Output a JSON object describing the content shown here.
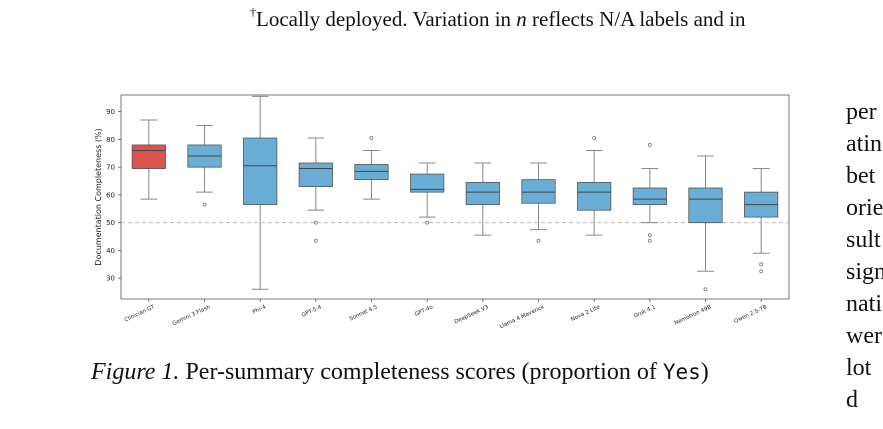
{
  "header_line": {
    "marker": "†",
    "text_before": "Locally deployed. Variation in ",
    "math_var": "n",
    "text_after": " reflects N/A labels and in"
  },
  "side_text_fragments": [
    "per",
    "atin",
    "bet",
    "orie",
    "sult",
    "sign",
    "nati",
    "wer",
    "lot",
    "d"
  ],
  "caption": {
    "label": "Figure 1.",
    "text": " Per-summary completeness scores (proportion of ",
    "code": "Yes",
    "close": ")"
  },
  "chart_data": {
    "type": "box",
    "ylabel": "Documentation Completeness (%)",
    "xlabel": "",
    "ylim": [
      22.5,
      96
    ],
    "yticks": [
      30,
      40,
      50,
      60,
      70,
      80,
      90
    ],
    "reference_line": 50,
    "grid": false,
    "colors": {
      "highlight": "#d9534f",
      "default": "#6aaed6",
      "median": "#444444",
      "whisker": "#888888",
      "reference": "#b0b0b0"
    },
    "categories": [
      "Clinician GT",
      "Gemini 3 Flash",
      "Phi-4",
      "GPT-5.4",
      "Sonnet 4.5",
      "GPT-4o",
      "DeepSeek V3",
      "Llama 4 Maverick",
      "Nova 2 Lite",
      "Grok 4.1",
      "Nemotron 49B",
      "Qwen 2.5-7B"
    ],
    "boxes": [
      {
        "highlight": true,
        "min": 58.5,
        "q1": 69.5,
        "median": 76,
        "q3": 78,
        "max": 87,
        "outliers": []
      },
      {
        "highlight": false,
        "min": 61,
        "q1": 70,
        "median": 74,
        "q3": 78,
        "max": 85,
        "outliers": [
          56.5
        ]
      },
      {
        "highlight": false,
        "min": 26,
        "q1": 56.5,
        "median": 70.5,
        "q3": 80.5,
        "max": 95.5,
        "outliers": []
      },
      {
        "highlight": false,
        "min": 54.5,
        "q1": 63,
        "median": 69.5,
        "q3": 71.5,
        "max": 80.5,
        "outliers": [
          50,
          43.5
        ]
      },
      {
        "highlight": false,
        "min": 58.5,
        "q1": 65.5,
        "median": 68.5,
        "q3": 71,
        "max": 76,
        "outliers": [
          80.5
        ]
      },
      {
        "highlight": false,
        "min": 52,
        "q1": 61,
        "median": 62,
        "q3": 67.5,
        "max": 71.5,
        "outliers": [
          50
        ]
      },
      {
        "highlight": false,
        "min": 45.5,
        "q1": 56.5,
        "median": 61,
        "q3": 64.5,
        "max": 71.5,
        "outliers": []
      },
      {
        "highlight": false,
        "min": 47.5,
        "q1": 57,
        "median": 61,
        "q3": 65.5,
        "max": 71.5,
        "outliers": [
          43.5
        ]
      },
      {
        "highlight": false,
        "min": 45.5,
        "q1": 54.5,
        "median": 61,
        "q3": 64.5,
        "max": 76,
        "outliers": [
          80.5
        ]
      },
      {
        "highlight": false,
        "min": 50,
        "q1": 56.5,
        "median": 58.5,
        "q3": 62.5,
        "max": 69.5,
        "outliers": [
          78,
          45.5,
          43.5
        ]
      },
      {
        "highlight": false,
        "min": 32.5,
        "q1": 50,
        "median": 58.5,
        "q3": 62.5,
        "max": 74,
        "outliers": [
          26
        ]
      },
      {
        "highlight": false,
        "min": 39,
        "q1": 52,
        "median": 56.5,
        "q3": 61,
        "max": 69.5,
        "outliers": [
          35,
          32.5
        ]
      }
    ]
  }
}
